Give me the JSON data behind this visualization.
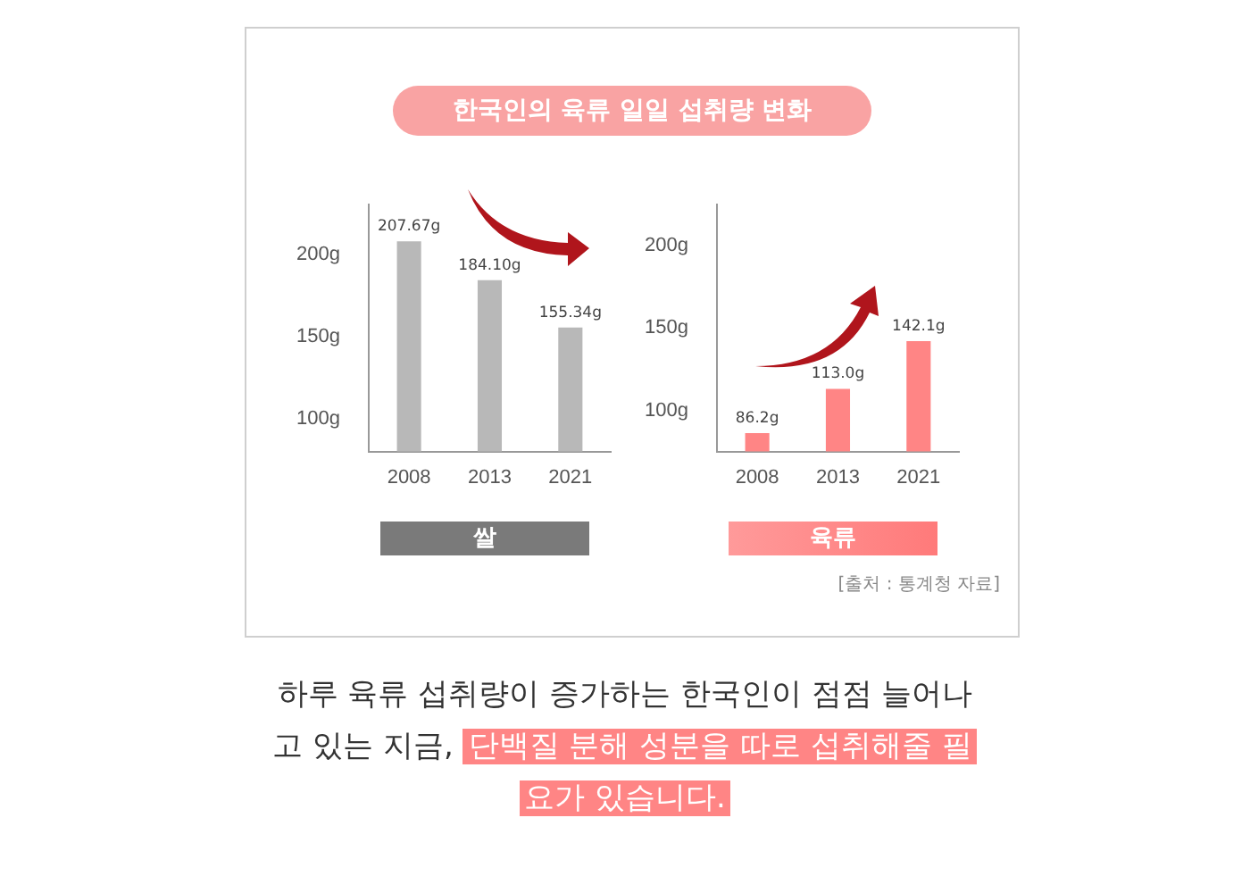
{
  "chart_data": [
    {
      "type": "bar",
      "title": "한국인의 육류 일일 섭취량 변화",
      "categories": [
        "2008",
        "2013",
        "2021"
      ],
      "values": [
        207.67,
        184.1,
        155.34
      ],
      "color": "#b8b8b8",
      "ylim": [
        80,
        230
      ],
      "yticks": [
        {
          "value": 100,
          "label": "100g"
        },
        {
          "value": 150,
          "label": "150g"
        },
        {
          "value": 200,
          "label": "200g"
        }
      ],
      "value_labels": [
        "207.67g",
        "184.10g",
        "155.34g"
      ],
      "xlabel": "쌀"
    },
    {
      "type": "bar",
      "categories": [
        "2008",
        "2013",
        "2021"
      ],
      "values": [
        86.2,
        113.0,
        142.1
      ],
      "color": "#ff8585",
      "ylim": [
        75,
        225
      ],
      "yticks": [
        {
          "value": 100,
          "label": "100g"
        },
        {
          "value": 150,
          "label": "150g"
        },
        {
          "value": 200,
          "label": "200g"
        }
      ],
      "value_labels": [
        "86.2g",
        "113.0g",
        "142.1g"
      ],
      "xlabel": "육류",
      "annotations": [
        "[출처 : 통계청 자료]",
        "하루 육류 섭취량이 증가하는 한국인이 점점 늘어나고 있는 지금,",
        "단백질 분해 성분을 따로 섭취해줄 필요가 있습니다."
      ]
    }
  ]
}
